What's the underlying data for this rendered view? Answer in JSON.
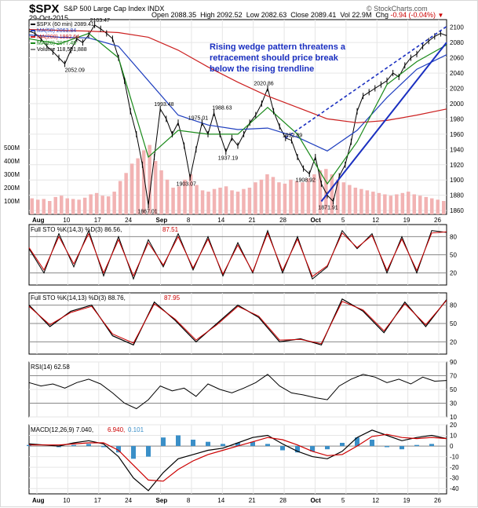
{
  "header": {
    "symbol": "$SPX",
    "company": "S&P 500 Large Cap Index  INDX",
    "date": "29-Oct-2015",
    "open_label": "Open",
    "open": "2088.35",
    "high_label": "High",
    "high": "2092.52",
    "low_label": "Low",
    "low": "2082.63",
    "close_label": "Close",
    "close": "2089.41",
    "volume_label": "Vol",
    "volume": "22.9M",
    "chg_label": "Chg",
    "chg": "-0.94 (-0.04%)",
    "watermark": "© StockCharts.com"
  },
  "legend": {
    "price": "$SPX (60 min) 2089.41",
    "ma50": "MA(50) 2063.84",
    "ma200": "MA(200) 1992.64",
    "ma20": "MA(20) 2077.49",
    "volume": "Volume 118,501,888"
  },
  "annotation": {
    "line1": "Rising wedge pattern threatens a",
    "line2": "retracement should price break",
    "line3": "below the rising trendline"
  },
  "colors": {
    "price": "#000000",
    "ma50": "#1f3fbf",
    "ma200": "#cc2020",
    "ma20": "#1a8a1a",
    "volume": "#f2b3b3",
    "trendline": "#1a2fc0",
    "annotation": "#1a2fc0",
    "k_line": "#000000",
    "d_line": "#cc0000",
    "macd_line": "#000000",
    "signal_line": "#cc0000",
    "histogram": "#3a8fc8"
  },
  "x_axis": {
    "ticks": [
      "Aug",
      "10",
      "17",
      "24",
      "Sep",
      "8",
      "14",
      "21",
      "28",
      "Oct",
      "5",
      "12",
      "19",
      "26"
    ]
  },
  "chart_data": [
    {
      "type": "line",
      "panel": "price",
      "title": "$SPX S&P 500 Large Cap Index INDX (60 min)",
      "ylim": [
        1855,
        2110
      ],
      "y_ticks": [
        "2100",
        "2080",
        "2060",
        "2040",
        "2020",
        "2000",
        "1980",
        "1960",
        "1940",
        "1920",
        "1900",
        "1880",
        "1860"
      ],
      "volume_ticks": [
        "500M",
        "400M",
        "300M",
        "200M",
        "100M"
      ],
      "price_labels": [
        "2052.09",
        "2103.47",
        "1867.01",
        "1993.48",
        "1903.07",
        "1975.01",
        "1988.63",
        "1937.19",
        "2020.86",
        "1952.89",
        "1908.92",
        "1871.91"
      ],
      "series": [
        {
          "name": "$SPX (60 min)",
          "x": [
            0,
            4,
            8,
            12,
            16,
            20,
            24,
            28,
            32,
            36,
            40,
            44,
            48,
            52,
            56,
            60,
            64,
            68,
            72,
            76,
            80,
            84,
            88,
            92,
            96,
            100,
            104,
            108,
            112,
            116,
            120,
            124,
            128,
            132,
            136,
            140,
            144,
            148,
            152,
            156,
            160,
            164,
            168,
            172,
            176,
            180,
            184,
            188,
            192,
            196,
            200,
            204,
            208,
            212,
            216,
            220,
            224,
            228,
            232,
            236,
            240,
            244,
            248,
            252,
            256,
            260,
            264,
            268,
            272,
            276,
            280
          ],
          "y": [
            2095,
            2092,
            2085,
            2075,
            2068,
            2060,
            2052,
            2070,
            2085,
            2080,
            2090,
            2103,
            2098,
            2092,
            2085,
            2060,
            2030,
            1990,
            1960,
            1920,
            1867,
            1930,
            1993,
            1980,
            1960,
            1975,
            1945,
            1903,
            1940,
            1975,
            1960,
            1988,
            1960,
            1937,
            1955,
            1945,
            1960,
            1975,
            1985,
            2000,
            2020,
            1990,
            1970,
            1955,
            1952,
            1930,
            1915,
            1908,
            1930,
            1895,
            1880,
            1872,
            1905,
            1920,
            1950,
            1990,
            2010,
            2015,
            2020,
            2025,
            2030,
            2040,
            2035,
            2050,
            2060,
            2065,
            2075,
            2082,
            2088,
            2092,
            2089
          ]
        },
        {
          "name": "MA(50)",
          "x": [
            0,
            20,
            40,
            60,
            80,
            100,
            120,
            140,
            160,
            180,
            200,
            220,
            240,
            260,
            280
          ],
          "y": [
            2090,
            2087,
            2086,
            2075,
            2030,
            1985,
            1972,
            1966,
            1968,
            1956,
            1938,
            1965,
            2008,
            2045,
            2064
          ]
        },
        {
          "name": "MA(200)",
          "x": [
            0,
            20,
            40,
            60,
            80,
            100,
            120,
            140,
            160,
            180,
            200,
            220,
            240,
            260,
            280
          ],
          "y": [
            2097,
            2096,
            2095,
            2093,
            2087,
            2070,
            2048,
            2028,
            2010,
            1995,
            1980,
            1975,
            1978,
            1985,
            1993
          ]
        },
        {
          "name": "MA(20)",
          "x": [
            0,
            20,
            40,
            60,
            80,
            100,
            120,
            140,
            160,
            180,
            200,
            220,
            240,
            260,
            280
          ],
          "y": [
            2085,
            2078,
            2092,
            2060,
            1930,
            1965,
            1960,
            1960,
            1995,
            1960,
            1895,
            1950,
            2025,
            2055,
            2077
          ]
        }
      ],
      "volume": [
        120,
        110,
        115,
        100,
        130,
        140,
        120,
        115,
        110,
        125,
        150,
        160,
        140,
        135,
        170,
        250,
        310,
        380,
        420,
        480,
        520,
        400,
        330,
        260,
        200,
        210,
        260,
        300,
        220,
        180,
        170,
        190,
        200,
        210,
        180,
        170,
        190,
        200,
        240,
        260,
        300,
        280,
        240,
        230,
        260,
        250,
        240,
        270,
        300,
        330,
        340,
        300,
        260,
        240,
        220,
        200,
        190,
        180,
        170,
        160,
        150,
        140,
        150,
        160,
        170,
        150,
        140,
        130,
        120,
        110,
        100
      ],
      "trendlines": [
        {
          "name": "rising support",
          "x": [
            196,
            280
          ],
          "y": [
            1872,
            2080
          ]
        },
        {
          "name": "rising resistance",
          "x": [
            172,
            280
          ],
          "y": [
            1955,
            2101
          ]
        }
      ]
    },
    {
      "type": "line",
      "panel": "Full STO %K(14,3) %D(3)",
      "title": "Full STO %K(14,3) %D(3) 86.56, 87.51",
      "k_label": "Full STO %K(14,3) %D(3) 86.56,",
      "d_label": "87.51",
      "ylim": [
        0,
        100
      ],
      "y_ticks": [
        "80",
        "50",
        "20"
      ],
      "series": [
        {
          "name": "%K",
          "x": [
            0,
            10,
            20,
            30,
            40,
            50,
            60,
            70,
            80,
            90,
            100,
            110,
            120,
            130,
            140,
            150,
            160,
            170,
            180,
            190,
            200,
            210,
            220,
            230,
            240,
            250,
            260,
            270,
            280
          ],
          "y": [
            60,
            20,
            85,
            30,
            90,
            15,
            80,
            10,
            75,
            30,
            85,
            25,
            80,
            15,
            70,
            20,
            90,
            20,
            80,
            10,
            30,
            90,
            60,
            85,
            20,
            80,
            20,
            90,
            87
          ]
        },
        {
          "name": "%D",
          "x": [
            0,
            10,
            20,
            30,
            40,
            50,
            60,
            70,
            80,
            90,
            100,
            110,
            120,
            130,
            140,
            150,
            160,
            170,
            180,
            190,
            200,
            210,
            220,
            230,
            240,
            250,
            260,
            270,
            280
          ],
          "y": [
            62,
            25,
            80,
            35,
            85,
            20,
            75,
            15,
            70,
            33,
            80,
            28,
            76,
            18,
            66,
            22,
            86,
            24,
            76,
            14,
            32,
            86,
            62,
            82,
            24,
            76,
            24,
            86,
            88
          ]
        }
      ]
    },
    {
      "type": "line",
      "panel": "Full STO %K(14,13) %D(3)",
      "title": "Full STO %K(14,13) %D(3) 88.76, 87.95",
      "k_label": "Full STO %K(14,13) %D(3) 88.76,",
      "d_label": "87.95",
      "ylim": [
        0,
        100
      ],
      "y_ticks": [
        "80",
        "50",
        "20"
      ],
      "series": [
        {
          "name": "%K",
          "x": [
            0,
            14,
            28,
            42,
            56,
            70,
            84,
            98,
            112,
            126,
            140,
            154,
            168,
            182,
            196,
            210,
            224,
            238,
            252,
            266,
            280
          ],
          "y": [
            80,
            45,
            70,
            80,
            30,
            15,
            85,
            55,
            20,
            50,
            80,
            60,
            20,
            25,
            15,
            90,
            70,
            35,
            85,
            45,
            89
          ]
        },
        {
          "name": "%D",
          "x": [
            0,
            14,
            28,
            42,
            56,
            70,
            84,
            98,
            112,
            126,
            140,
            154,
            168,
            182,
            196,
            210,
            224,
            238,
            252,
            266,
            280
          ],
          "y": [
            78,
            48,
            68,
            78,
            33,
            18,
            82,
            57,
            23,
            48,
            78,
            62,
            23,
            24,
            17,
            86,
            72,
            38,
            82,
            48,
            88
          ]
        }
      ]
    },
    {
      "type": "line",
      "panel": "RSI(14)",
      "title": "RSI(14) 62.58",
      "ylim": [
        10,
        90
      ],
      "y_ticks": [
        "90",
        "70",
        "50",
        "30",
        "10"
      ],
      "series": [
        {
          "name": "RSI(14)",
          "x": [
            0,
            8,
            16,
            24,
            32,
            40,
            48,
            56,
            64,
            72,
            80,
            88,
            96,
            104,
            112,
            120,
            128,
            136,
            144,
            152,
            160,
            168,
            176,
            184,
            192,
            200,
            208,
            216,
            224,
            232,
            240,
            248,
            256,
            264,
            272,
            280
          ],
          "y": [
            60,
            55,
            58,
            52,
            60,
            65,
            58,
            45,
            30,
            22,
            35,
            55,
            48,
            52,
            40,
            58,
            50,
            45,
            52,
            60,
            72,
            55,
            45,
            42,
            38,
            35,
            55,
            65,
            72,
            68,
            60,
            65,
            58,
            68,
            62,
            63
          ]
        }
      ]
    },
    {
      "type": "line",
      "panel": "MACD(12,26,9)",
      "title": "MACD(12,26,9) 7.040, 6.940, 0.101",
      "macd_label": "MACD(12,26,9) 7.040,",
      "signal_label": "6.940,",
      "hist_label": "0.101",
      "ylim": [
        -45,
        20
      ],
      "y_ticks": [
        "20",
        "10",
        "0",
        "-10",
        "-20",
        "-30",
        "-40"
      ],
      "series": [
        {
          "name": "MACD",
          "x": [
            0,
            10,
            20,
            30,
            40,
            50,
            60,
            70,
            80,
            90,
            100,
            110,
            120,
            130,
            140,
            150,
            160,
            170,
            180,
            190,
            200,
            210,
            220,
            230,
            240,
            250,
            260,
            270,
            280
          ],
          "y": [
            2,
            1,
            0,
            3,
            5,
            2,
            -10,
            -30,
            -42,
            -25,
            -12,
            -8,
            -4,
            -2,
            3,
            8,
            10,
            2,
            -5,
            -10,
            -12,
            -5,
            8,
            15,
            10,
            5,
            8,
            10,
            7
          ]
        },
        {
          "name": "Signal",
          "x": [
            0,
            10,
            20,
            30,
            40,
            50,
            60,
            70,
            80,
            90,
            100,
            110,
            120,
            130,
            140,
            150,
            160,
            170,
            180,
            190,
            200,
            210,
            220,
            230,
            240,
            250,
            260,
            270,
            280
          ],
          "y": [
            1,
            1,
            1,
            2,
            3,
            3,
            -4,
            -18,
            -32,
            -33,
            -22,
            -14,
            -8,
            -4,
            0,
            4,
            8,
            6,
            1,
            -5,
            -9,
            -8,
            0,
            9,
            11,
            8,
            7,
            8,
            7
          ]
        }
      ]
    }
  ]
}
